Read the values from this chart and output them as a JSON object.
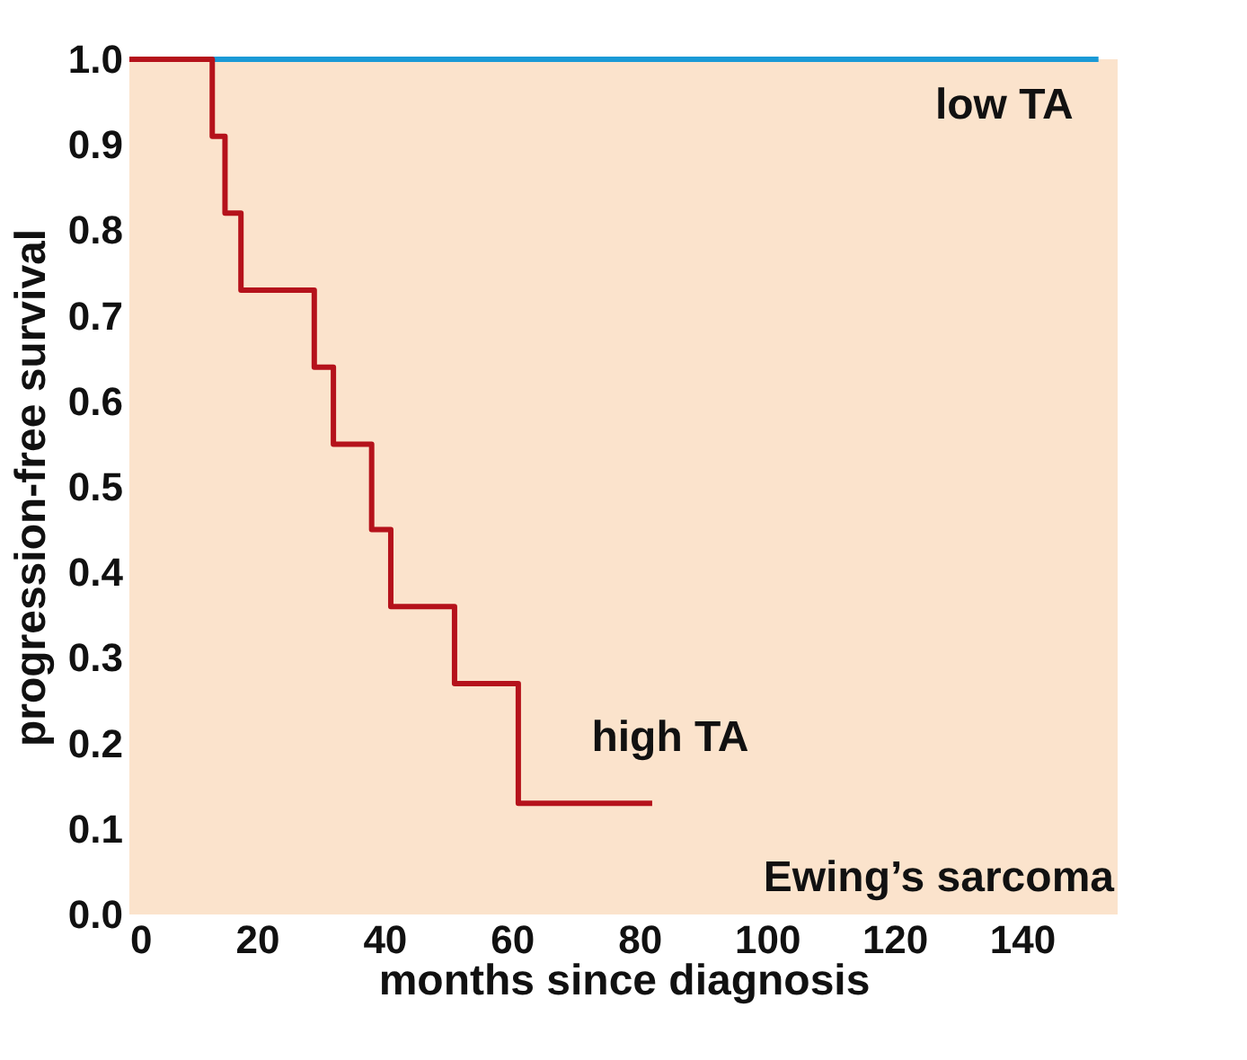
{
  "chart_data": {
    "type": "step",
    "xlabel": "months since diagnosis",
    "ylabel": "progression-free survival",
    "xlim": [
      0,
      155
    ],
    "xticks": [
      0,
      20,
      40,
      60,
      80,
      100,
      120,
      140
    ],
    "ylim": [
      0,
      1.0
    ],
    "yticks": [
      {
        "value": 0,
        "label": "0.0"
      },
      0.1,
      0.2,
      0.3,
      0.4,
      0.5,
      0.6,
      0.7,
      0.8,
      0.9,
      {
        "value": 1,
        "label": "1.0"
      }
    ],
    "grid": false,
    "marker": "none",
    "line_style": "solid",
    "series": [
      {
        "name": "low TA",
        "color": "#1a9ad6",
        "x": [
          0,
          152
        ],
        "values": [
          1.0,
          1.0
        ]
      },
      {
        "name": "high TA",
        "color": "#b5121b",
        "x": [
          0,
          13,
          15,
          17.5,
          29,
          32,
          38,
          41,
          51,
          61,
          82
        ],
        "values": [
          1.0,
          0.91,
          0.82,
          0.73,
          0.64,
          0.55,
          0.45,
          0.36,
          0.27,
          0.13,
          0.13
        ]
      }
    ],
    "annotations": [
      "Ewing’s sarcoma"
    ]
  }
}
